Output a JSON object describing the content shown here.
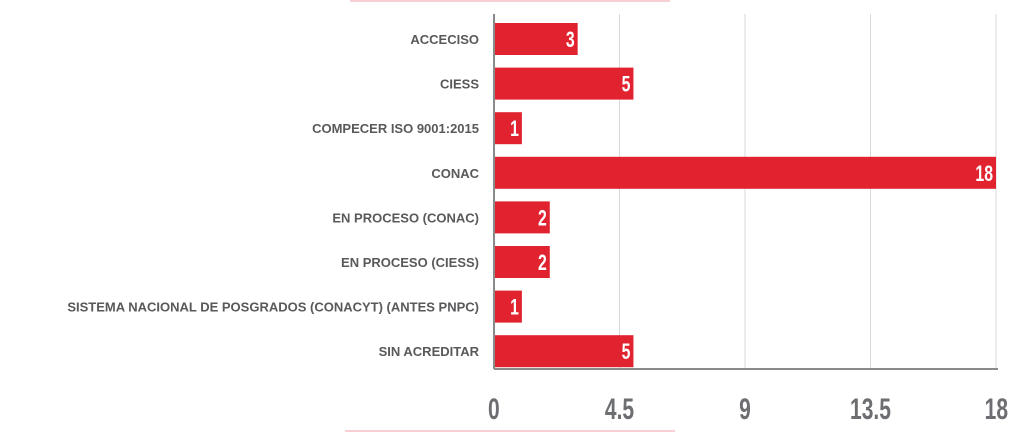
{
  "chart_data": {
    "type": "bar",
    "orientation": "horizontal",
    "categories": [
      "ACCECISO",
      "CIESS",
      "COMPECER ISO 9001:2015",
      "CONAC",
      "EN PROCESO (CONAC)",
      "EN PROCESO (CIESS)",
      "SISTEMA NACIONAL DE POSGRADOS (CONACYT) (ANTES PNPC)",
      "SIN ACREDITAR"
    ],
    "values": [
      3,
      5,
      1,
      18,
      2,
      2,
      1,
      5
    ],
    "data_labels": [
      "3",
      "5",
      "1",
      "18",
      "2",
      "2",
      "1",
      "5"
    ],
    "xlim": [
      0,
      18
    ],
    "x_ticks": [
      "0",
      "4.5",
      "9",
      "13.5",
      "18"
    ],
    "x_tick_values": [
      0,
      4.5,
      9,
      13.5,
      18
    ],
    "title": "",
    "xlabel": "",
    "ylabel": "",
    "grid": true,
    "legend": "none"
  },
  "colors": {
    "bar": "#e0232f",
    "accent_line": "#f2a9ae",
    "category_text": "#58595b",
    "tick_text": "#6d6e71",
    "bar_label_text": "#ffffff",
    "grid": "#d9d9d9",
    "axis": "#8a8a8a"
  }
}
